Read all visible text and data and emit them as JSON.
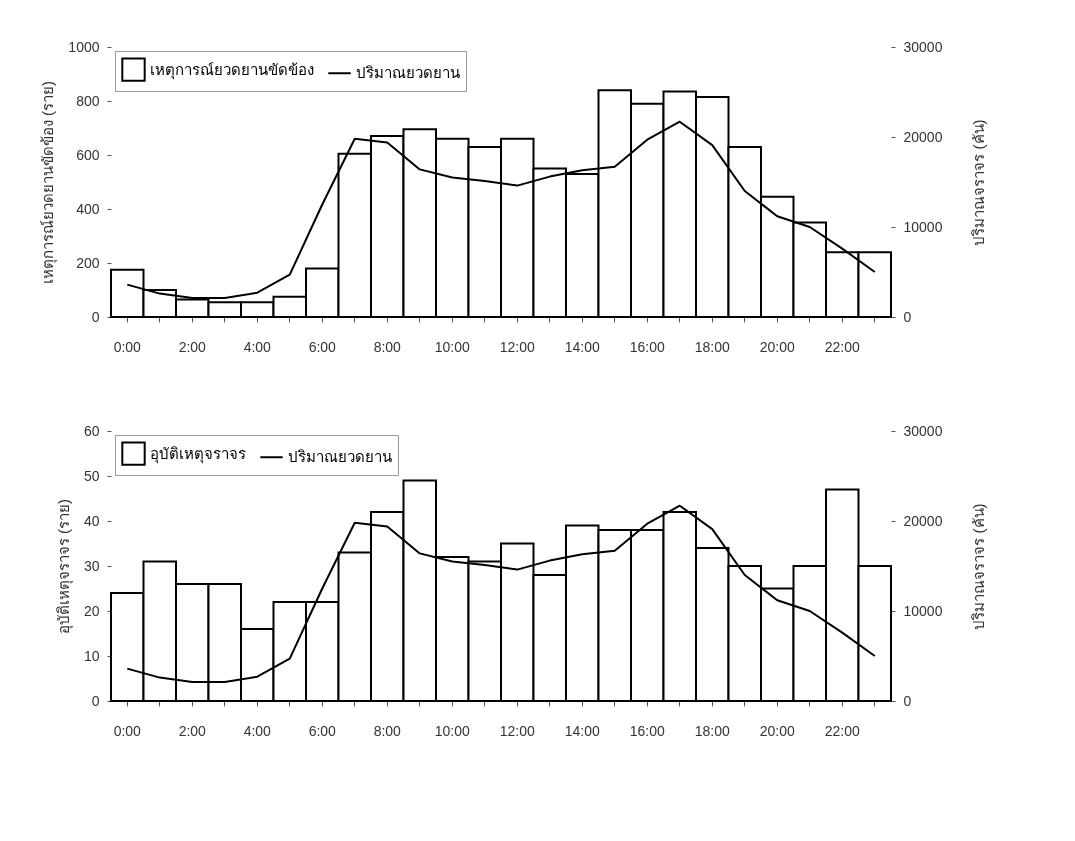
{
  "chart_data": [
    {
      "type": "bar",
      "categories": [
        "0:00",
        null,
        "2:00",
        null,
        "4:00",
        null,
        "6:00",
        null,
        "8:00",
        null,
        "10:00",
        null,
        "12:00",
        null,
        "14:00",
        null,
        "16:00",
        null,
        "18:00",
        null,
        "20:00",
        null,
        "22:00",
        null
      ],
      "ylabel": "เหตุการณ์ยวดยานขัดข้อง (ราย)",
      "y2label": "ปริมาณจราจร (คัน)",
      "ylim": [
        0,
        1000
      ],
      "yticks": [
        0,
        200,
        400,
        600,
        800,
        1000
      ],
      "y2lim": [
        0,
        30000
      ],
      "y2ticks": [
        0,
        10000,
        20000,
        30000
      ],
      "legend": "top left",
      "series": [
        {
          "name": "เหตุการณ์ยวดยานขัดข้อง",
          "color": "#ffffff",
          "values": [
            175,
            100,
            65,
            55,
            55,
            75,
            180,
            605,
            670,
            695,
            660,
            630,
            660,
            550,
            530,
            840,
            790,
            835,
            815,
            630,
            445,
            350,
            240,
            240
          ]
        },
        {
          "name": "ปริมาณยวดยาน",
          "type": "line",
          "axis": "y2",
          "color": "#000000",
          "values": [
            3600,
            2600,
            2100,
            2100,
            2700,
            4700,
            12500,
            19800,
            19400,
            16400,
            15500,
            15100,
            14600,
            15600,
            16300,
            16700,
            19700,
            21700,
            19100,
            14000,
            11200,
            10000,
            7600,
            5000
          ]
        }
      ]
    },
    {
      "type": "bar",
      "categories": [
        "0:00",
        null,
        "2:00",
        null,
        "4:00",
        null,
        "6:00",
        null,
        "8:00",
        null,
        "10:00",
        null,
        "12:00",
        null,
        "14:00",
        null,
        "16:00",
        null,
        "18:00",
        null,
        "20:00",
        null,
        "22:00",
        null
      ],
      "ylabel": "อุบัติเหตุจราจร (ราย)",
      "y2label": "ปริมาณจราจร (คัน)",
      "ylim": [
        0,
        60
      ],
      "yticks": [
        0,
        10,
        20,
        30,
        40,
        50,
        60
      ],
      "y2lim": [
        0,
        30000
      ],
      "y2ticks": [
        0,
        10000,
        20000,
        30000
      ],
      "legend": "top left",
      "series": [
        {
          "name": "อุบัติเหตุจราจร",
          "color": "#ffffff",
          "values": [
            24,
            31,
            26,
            26,
            16,
            22,
            22,
            33,
            42,
            49,
            32,
            31,
            35,
            28,
            39,
            38,
            38,
            42,
            34,
            30,
            25,
            30,
            47,
            30
          ]
        },
        {
          "name": "ปริมาณยวดยาน",
          "type": "line",
          "axis": "y2",
          "color": "#000000",
          "values": [
            3600,
            2600,
            2100,
            2100,
            2700,
            4700,
            12500,
            19800,
            19400,
            16400,
            15500,
            15100,
            14600,
            15600,
            16300,
            16700,
            19700,
            21700,
            19100,
            14000,
            11200,
            10000,
            7600,
            5000
          ]
        }
      ]
    }
  ]
}
